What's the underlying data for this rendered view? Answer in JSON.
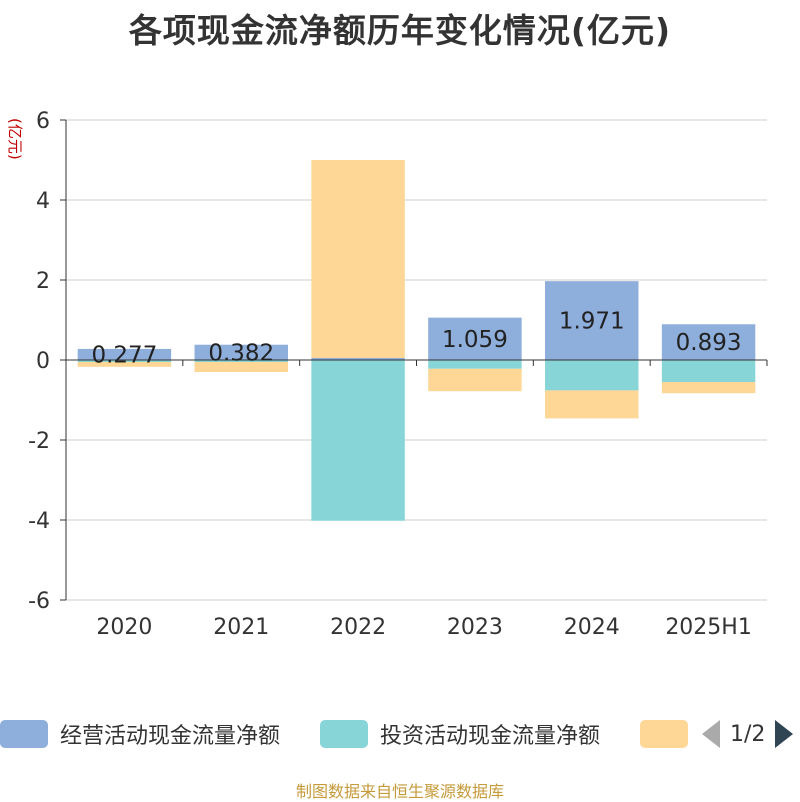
{
  "title": "各项现金流净额历年变化情况(亿元)",
  "source": "制图数据来自恒生聚源数据库",
  "legend_pager": {
    "text": "1/2"
  },
  "chart_data": {
    "type": "bar",
    "stacked": true,
    "title": "各项现金流净额历年变化情况(亿元)",
    "ylabel": "(亿元)",
    "xlabel": "",
    "categories": [
      "2020",
      "2021",
      "2022",
      "2023",
      "2024",
      "2025H1"
    ],
    "ylim": [
      -6,
      6
    ],
    "yticks": [
      6,
      4,
      2,
      0,
      -2,
      -4,
      -6
    ],
    "grid": true,
    "legend_position": "bottom",
    "series": [
      {
        "name": "经营活动现金流量净额",
        "color": "#8eaedb",
        "values": [
          0.277,
          0.382,
          0.05,
          1.059,
          1.971,
          0.893
        ],
        "labels": [
          "0.277",
          "0.382",
          "",
          "1.059",
          "1.971",
          "0.893"
        ]
      },
      {
        "name": "投资活动现金流量净额",
        "color": "#88d5d8",
        "values": [
          -0.05,
          -0.05,
          -4.02,
          -0.22,
          -0.76,
          -0.55
        ],
        "labels": [
          "",
          "",
          "",
          "",
          "",
          ""
        ]
      },
      {
        "name": "",
        "color": "#fed796",
        "values": [
          -0.12,
          -0.25,
          4.95,
          -0.56,
          -0.7,
          -0.28
        ],
        "labels": [
          "",
          "",
          "",
          "",
          "",
          ""
        ]
      }
    ]
  }
}
